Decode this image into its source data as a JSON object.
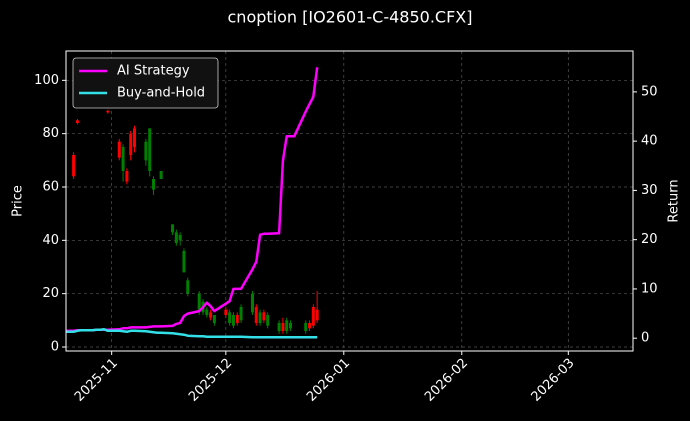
{
  "chart_data": {
    "type": "candlestick",
    "title": "cnoption [IO2601-C-4850.CFX]",
    "ylabel": "Price",
    "y2label": "Return",
    "x": [
      "2025-10-20",
      "2025-10-21",
      "2025-10-22",
      "2025-10-23",
      "2025-10-24",
      "2025-10-27",
      "2025-10-28",
      "2025-10-29",
      "2025-10-30",
      "2025-10-31",
      "2025-11-03",
      "2025-11-04",
      "2025-11-05",
      "2025-11-06",
      "2025-11-07",
      "2025-11-10",
      "2025-11-11",
      "2025-11-12",
      "2025-11-13",
      "2025-11-14",
      "2025-11-17",
      "2025-11-18",
      "2025-11-19",
      "2025-11-20",
      "2025-11-21",
      "2025-11-24",
      "2025-11-25",
      "2025-11-26",
      "2025-11-27",
      "2025-11-28",
      "2025-12-01",
      "2025-12-02",
      "2025-12-03",
      "2025-12-04",
      "2025-12-05",
      "2025-12-08",
      "2025-12-09",
      "2025-12-10",
      "2025-12-11",
      "2025-12-12",
      "2025-12-15",
      "2025-12-16",
      "2025-12-17",
      "2025-12-18",
      "2025-12-19",
      "2025-12-22",
      "2025-12-23",
      "2025-12-24",
      "2025-12-25",
      "2025-12-26"
    ],
    "candles": {
      "up_color": "#ff0000",
      "down_color": "#008000",
      "open": [
        null,
        null,
        64,
        84,
        null,
        null,
        null,
        null,
        null,
        88,
        71,
        75,
        62,
        72,
        75,
        77,
        82,
        63,
        null,
        66,
        46,
        43,
        42,
        36,
        25,
        20,
        17,
        14,
        11,
        12,
        12,
        13,
        12,
        9,
        15,
        20,
        9,
        13,
        10,
        12,
        9,
        6,
        10,
        9,
        null,
        9,
        7,
        8,
        10,
        null
      ],
      "high": [
        null,
        null,
        73,
        85.5,
        null,
        null,
        null,
        null,
        null,
        89,
        78,
        76,
        67,
        81,
        83,
        78,
        82,
        64,
        null,
        66,
        46,
        44,
        43,
        37,
        26,
        21,
        18,
        15,
        14,
        12,
        15,
        14,
        13,
        13,
        16,
        21,
        16,
        14,
        14,
        13,
        10,
        11,
        11,
        10,
        null,
        10,
        10,
        16,
        21,
        null
      ],
      "low": [
        null,
        null,
        63,
        83.5,
        null,
        null,
        null,
        null,
        null,
        87.5,
        70,
        62,
        61,
        70,
        73,
        68,
        64,
        57,
        null,
        63,
        42,
        38,
        38,
        28,
        19,
        12,
        12,
        11,
        10,
        8,
        11,
        8,
        7,
        8,
        9,
        12,
        8,
        8,
        9,
        7,
        5,
        5,
        5,
        6,
        null,
        5,
        6,
        7,
        9,
        null
      ],
      "close": [
        null,
        null,
        72,
        85,
        null,
        null,
        null,
        null,
        null,
        88.5,
        77,
        66,
        66,
        80,
        82,
        70,
        66,
        59,
        null,
        63,
        43,
        39,
        40,
        28,
        20,
        14,
        13,
        12,
        13,
        9,
        14,
        9,
        8,
        12,
        10,
        13,
        15,
        9,
        13,
        8,
        6,
        9,
        6,
        7,
        null,
        6,
        9,
        15,
        14,
        null
      ]
    },
    "series": [
      {
        "name": "AI Strategy",
        "color": "#ff00ff",
        "axis": "y2",
        "values": [
          1.5,
          1.5,
          1.5,
          1.6,
          1.6,
          1.6,
          1.7,
          1.7,
          1.7,
          1.7,
          1.8,
          2.0,
          2.0,
          2.2,
          2.2,
          2.2,
          2.3,
          2.4,
          2.4,
          2.4,
          2.5,
          2.9,
          3.1,
          4.5,
          5.0,
          5.5,
          6.3,
          7.2,
          6.5,
          5.5,
          7.0,
          7.5,
          10.0,
          10.0,
          10.0,
          14.0,
          15.5,
          21.0,
          21.2,
          21.2,
          21.3,
          36,
          41,
          41,
          41,
          46,
          47.5,
          49,
          55,
          null
        ]
      },
      {
        "name": "Buy-and-Hold",
        "color": "#33e0e8",
        "axis": "y2",
        "values": [
          1.3,
          1.3,
          1.3,
          1.5,
          1.6,
          1.6,
          1.7,
          1.7,
          1.8,
          1.5,
          1.5,
          1.4,
          1.3,
          1.5,
          1.5,
          1.4,
          1.3,
          1.2,
          1.1,
          1.1,
          1.0,
          0.9,
          0.8,
          0.7,
          0.5,
          0.4,
          0.4,
          0.3,
          0.3,
          0.3,
          0.3,
          0.3,
          0.3,
          0.3,
          0.3,
          0.2,
          0.2,
          0.2,
          0.2,
          0.2,
          0.2,
          0.2,
          0.2,
          0.2,
          0.2,
          0.2,
          0.2,
          0.2,
          0.2,
          null
        ]
      }
    ],
    "xlim": [
      "2025-10-20",
      "2026-03-18"
    ],
    "xticks": [
      {
        "value": "2025-11-01",
        "label": "2025-11"
      },
      {
        "value": "2025-12-01",
        "label": "2025-12"
      },
      {
        "value": "2026-01-01",
        "label": "2026-01"
      },
      {
        "value": "2026-02-01",
        "label": "2026-02"
      },
      {
        "value": "2026-03-01",
        "label": "2026-03"
      }
    ],
    "ylim": [
      -1.5,
      111
    ],
    "yticks": [
      0,
      20,
      40,
      60,
      80,
      100
    ],
    "y2lim": [
      -2.6,
      58.3
    ],
    "y2ticks": [
      0,
      10,
      20,
      30,
      40,
      50
    ],
    "grid": true,
    "legend": "upper left"
  }
}
